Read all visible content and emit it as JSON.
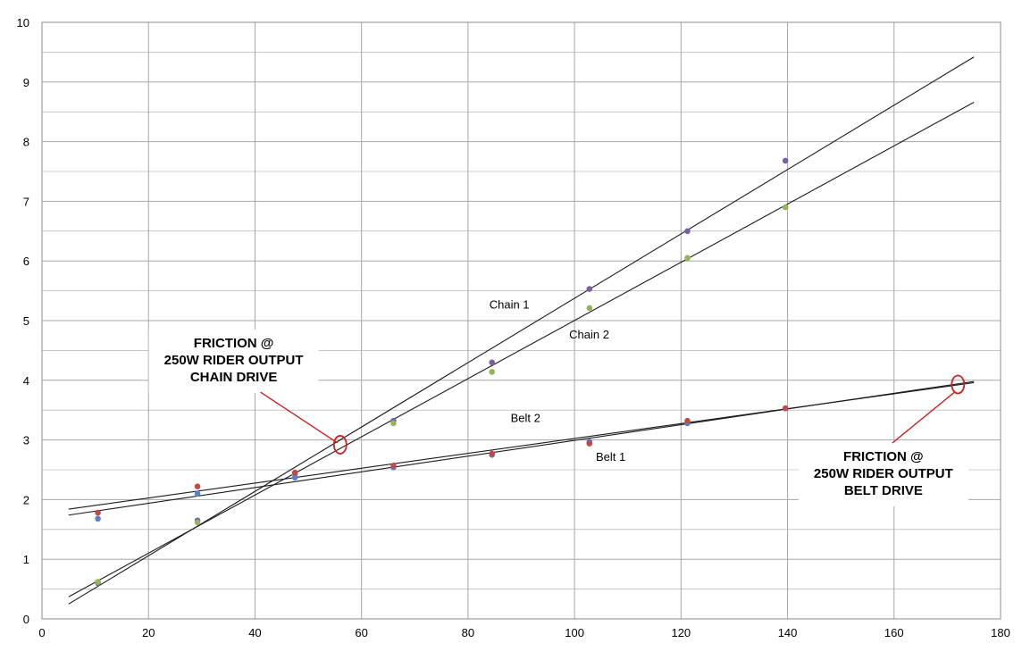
{
  "colors": {
    "grid": "#a6a6a6",
    "plot_border": "#8c8c8c",
    "trend_line": "#1a1a1a",
    "callout_marker": "#cc1f1f",
    "chain1_points": "#7a5ea8",
    "chain2_points": "#93b55a",
    "belt1_points": "#5a7ec9",
    "belt2_points": "#c24a46"
  },
  "chart_data": {
    "type": "scatter",
    "title": "",
    "xlabel": "",
    "ylabel": "",
    "xlim": [
      0,
      180
    ],
    "ylim": [
      0,
      10
    ],
    "grid": true,
    "legend": "none",
    "x_ticks": [
      "0",
      "20",
      "40",
      "60",
      "80",
      "100",
      "120",
      "140",
      "160",
      "180"
    ],
    "y_ticks": [
      "0",
      "1",
      "2",
      "3",
      "4",
      "5",
      "6",
      "7",
      "8",
      "9",
      "10"
    ],
    "series": [
      {
        "name": "Chain 1",
        "x": [
          10.5,
          29.2,
          47.5,
          66,
          84.5,
          102.8,
          121.2,
          139.6
        ],
        "y": [
          0.6,
          1.65,
          2.45,
          3.32,
          4.3,
          5.53,
          6.5,
          7.68
        ],
        "trendline": {
          "x": [
            5,
            175
          ],
          "y": [
            0.25,
            9.42
          ]
        },
        "label_position": {
          "x": 84,
          "y": 5.2
        }
      },
      {
        "name": "Chain 2",
        "x": [
          10.5,
          29.2,
          47.5,
          66,
          84.5,
          102.8,
          121.2,
          139.6
        ],
        "y": [
          0.62,
          1.62,
          2.42,
          3.28,
          4.14,
          5.21,
          6.05,
          6.9
        ],
        "trendline": {
          "x": [
            5,
            175
          ],
          "y": [
            0.37,
            8.66
          ]
        },
        "label_position": {
          "x": 99,
          "y": 4.7
        }
      },
      {
        "name": "Belt 1",
        "x": [
          10.5,
          29.2,
          47.5,
          66,
          84.5,
          102.8,
          121.2,
          139.6
        ],
        "y": [
          1.68,
          2.1,
          2.37,
          2.54,
          2.75,
          2.97,
          3.28,
          3.53
        ],
        "trendline": {
          "x": [
            5,
            175
          ],
          "y": [
            1.84,
            3.96
          ]
        },
        "label_position": {
          "x": 104,
          "y": 2.65
        }
      },
      {
        "name": "Belt 2",
        "x": [
          10.5,
          29.2,
          47.5,
          66,
          84.5,
          102.8,
          121.2,
          139.6
        ],
        "y": [
          1.78,
          2.22,
          2.45,
          2.57,
          2.77,
          2.94,
          3.32,
          3.53
        ],
        "trendline": {
          "x": [
            5,
            175
          ],
          "y": [
            1.74,
            3.98
          ]
        },
        "label_position": {
          "x": 88,
          "y": 3.3
        }
      }
    ],
    "annotations": [
      {
        "lines": [
          "FRICTION @",
          "250W RIDER OUTPUT",
          "CHAIN DRIVE"
        ],
        "marker": {
          "x": 56,
          "y": 2.92
        },
        "text_anchor": {
          "x": 36,
          "y": 4.55
        }
      },
      {
        "lines": [
          "FRICTION @",
          "250W RIDER OUTPUT",
          "BELT DRIVE"
        ],
        "marker": {
          "x": 172,
          "y": 3.93
        },
        "text_anchor": {
          "x": 158,
          "y": 2.65
        }
      }
    ]
  }
}
